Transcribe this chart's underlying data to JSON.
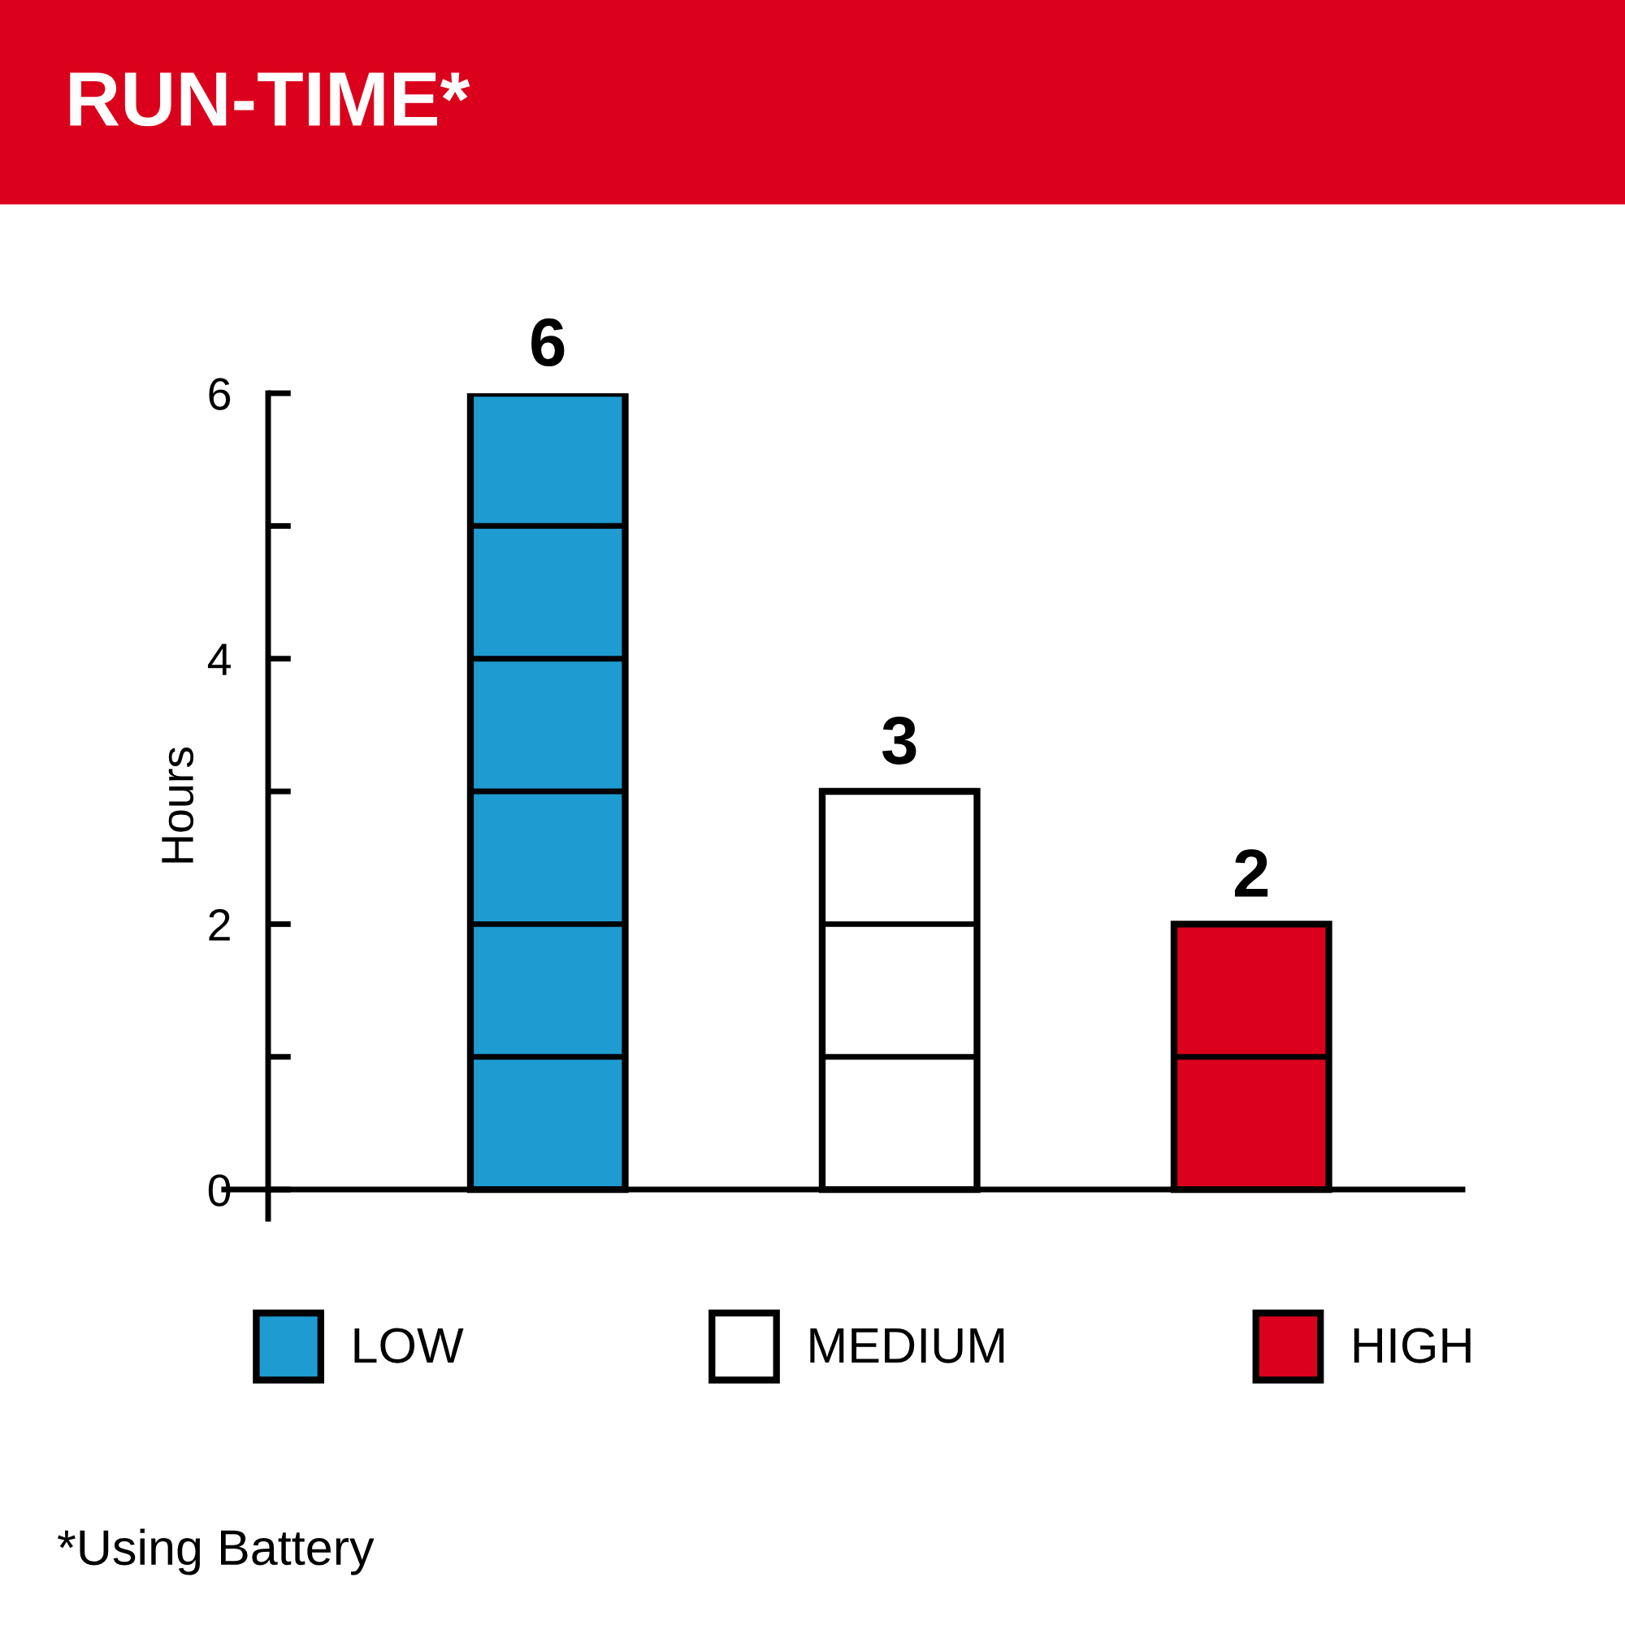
{
  "chart_data": {
    "type": "bar",
    "title": "RUN-TIME*",
    "ylabel": "Hours",
    "categories": [
      null,
      null,
      null
    ],
    "series": [
      {
        "name": "LOW",
        "color": "#1e9bd0",
        "values": [
          6,
          null,
          null
        ]
      },
      {
        "name": "MEDIUM",
        "color": "#ffffff",
        "values": [
          null,
          3,
          null
        ]
      },
      {
        "name": "HIGH",
        "color": "#db011c",
        "values": [
          null,
          null,
          2
        ]
      }
    ],
    "ylim": [
      -0.22,
      6
    ],
    "yticks": [
      0,
      {
        "value": 1,
        "label": null
      },
      2,
      {
        "value": 3,
        "label": null
      },
      4,
      {
        "value": 5,
        "label": null
      },
      6
    ],
    "data_labels": true,
    "legend": "bottom",
    "tick_labels": "y",
    "grid": "y",
    "annotations": [
      "*Using Battery"
    ]
  }
}
